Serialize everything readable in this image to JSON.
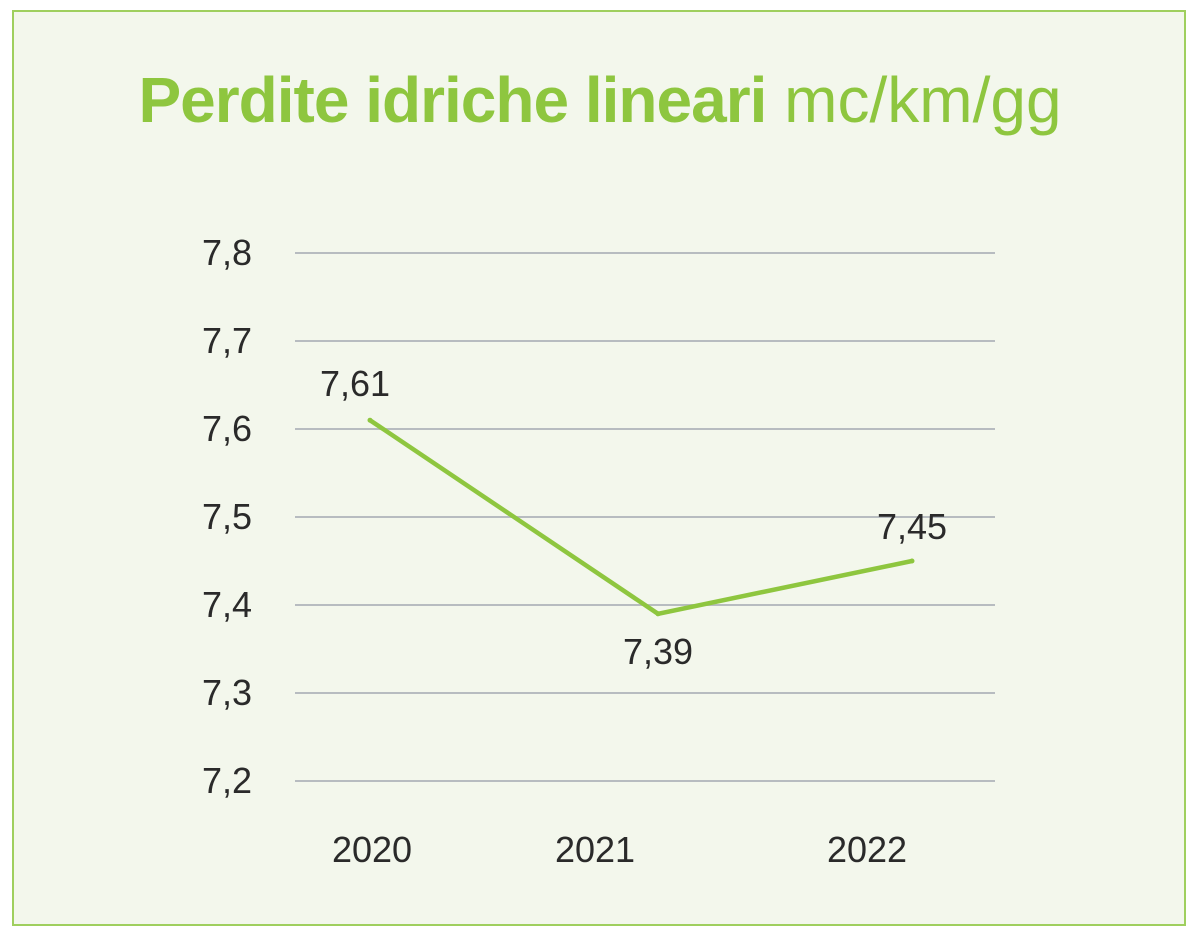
{
  "chart_data": {
    "type": "line",
    "title": "Perdite idriche lineari",
    "title_unit": "mc/km/gg",
    "categories": [
      "2020",
      "2021",
      "2022"
    ],
    "values": [
      7.61,
      7.39,
      7.45
    ],
    "data_labels": [
      "7,61",
      "7,39",
      "7,45"
    ],
    "y_ticks": [
      "7,2",
      "7,3",
      "7,4",
      "7,5",
      "7,6",
      "7,7",
      "7,8"
    ],
    "ylim": [
      7.2,
      7.8
    ],
    "grid": true,
    "legend": "none",
    "colors": {
      "line": "#8ec63f",
      "title": "#8ec63f",
      "grid": "#b7bcc0",
      "background": "#f3f7ec",
      "border": "#9fcf5e"
    }
  }
}
